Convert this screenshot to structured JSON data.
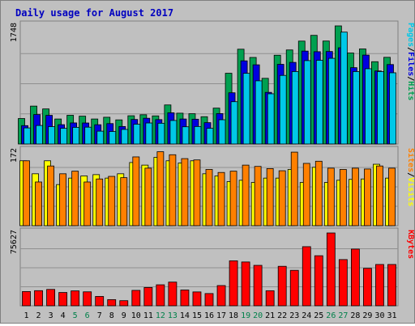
{
  "chart_data": {
    "type": "bar",
    "title": "Daily usage for August 2017",
    "days": [
      "1",
      "2",
      "3",
      "4",
      "5",
      "6",
      "7",
      "8",
      "9",
      "10",
      "11",
      "12",
      "13",
      "14",
      "15",
      "16",
      "17",
      "18",
      "19",
      "20",
      "21",
      "22",
      "23",
      "24",
      "25",
      "26",
      "27",
      "28",
      "29",
      "30",
      "31"
    ],
    "weekend_days": [
      "5",
      "6",
      "12",
      "13",
      "19",
      "20",
      "26",
      "27"
    ],
    "panels": [
      {
        "name": "hits-files-pages",
        "ymax_label": "1748",
        "ymax": 1748,
        "legend": [
          {
            "text": "Pages",
            "color": "#00c8e8"
          },
          {
            "text": "/",
            "color": "#000000"
          },
          {
            "text": "Files",
            "color": "#0000e0"
          },
          {
            "text": "/",
            "color": "#000000"
          },
          {
            "text": "Hits",
            "color": "#00a050"
          }
        ],
        "series": [
          {
            "name": "Hits",
            "color": "#00a050",
            "values": [
              377,
              561,
              519,
              370,
              425,
              412,
              370,
              396,
              357,
              418,
              433,
              416,
              578,
              456,
              448,
              404,
              531,
              1047,
              1403,
              1281,
              972,
              1314,
              1392,
              1523,
              1608,
              1524,
              1748,
              1347,
              1407,
              1218,
              1283
            ]
          },
          {
            "name": "Files",
            "color": "#0000e0",
            "values": [
              272,
              436,
              424,
              286,
              312,
              311,
              285,
              302,
              259,
              363,
              381,
              361,
              462,
              370,
              367,
              316,
              450,
              758,
              1231,
              1172,
              764,
              1179,
              1208,
              1375,
              1366,
              1369,
              1424,
              1130,
              1316,
              1081,
              1176
            ]
          },
          {
            "name": "Pages",
            "color": "#00c8e8",
            "values": [
              238,
              274,
              257,
              232,
              246,
              249,
              190,
              185,
              216,
              293,
              311,
              307,
              348,
              255,
              259,
              232,
              359,
              626,
              1046,
              935,
              743,
              1015,
              1072,
              1234,
              1239,
              1268,
              1656,
              1072,
              1114,
              1072,
              1054
            ]
          }
        ]
      },
      {
        "name": "visits-sites",
        "ymax_label": "172",
        "ymax": 172,
        "legend": [
          {
            "text": "Sites",
            "color": "#ff8000"
          },
          {
            "text": "/",
            "color": "#000000"
          },
          {
            "text": "Visits",
            "color": "#ffff00"
          }
        ],
        "series": [
          {
            "name": "Visits",
            "color": "#ffff00",
            "values": [
              150,
              120,
              150,
              95,
              110,
              115,
              118,
              110,
              120,
              146,
              140,
              158,
              150,
              145,
              150,
              120,
              115,
              102,
              105,
              100,
              110,
              110,
              130,
              100,
              135,
              100,
              105,
              107,
              108,
              142,
              110
            ]
          },
          {
            "name": "Sites",
            "color": "#ff8000",
            "values": [
              150,
              101,
              138,
              120,
              126,
              101,
              108,
              114,
              111,
              159,
              133,
              171,
              164,
              155,
              152,
              130,
              123,
              126,
              140,
              137,
              132,
              127,
              170,
              144,
              149,
              133,
              130,
              133,
              131,
              138,
              133
            ]
          }
        ]
      },
      {
        "name": "kbytes",
        "ymax_label": "75627",
        "ymax": 75627,
        "legend": [
          {
            "text": "KBytes",
            "color": "#ff0000"
          }
        ],
        "series": [
          {
            "name": "KBytes",
            "color": "#ff0000",
            "values": [
              14800,
              15700,
              17000,
              13800,
              15500,
              14500,
              9700,
              6400,
              5300,
              16000,
              19000,
              21800,
              24600,
              16400,
              14400,
              12700,
              21000,
              46700,
              45500,
              42000,
              15600,
              41000,
              36800,
              61400,
              52000,
              75627,
              48000,
              58900,
              38900,
              42900,
              42900
            ]
          }
        ]
      }
    ]
  }
}
